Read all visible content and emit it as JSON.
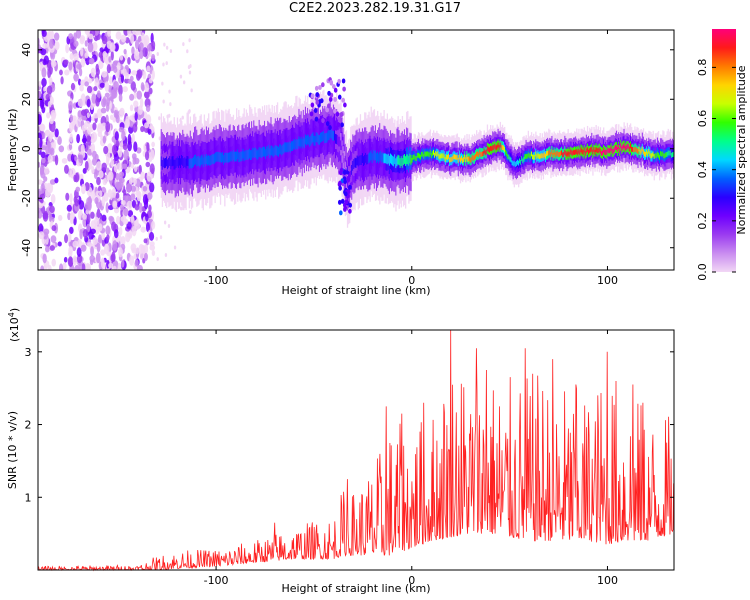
{
  "title": "C2E2.2023.282.19.31.G17",
  "colors": {
    "line": "#ff2020",
    "background": "#ffffff",
    "colormap": [
      "#f2d7f5",
      "#c98cf0",
      "#9b3cf0",
      "#6e00ff",
      "#2a00ff",
      "#0060ff",
      "#00d8ff",
      "#00ff8a",
      "#30ff00",
      "#c8ff00",
      "#ffd400",
      "#ff7a00",
      "#ff1a1a",
      "#ff007a"
    ]
  },
  "chart_data": [
    {
      "type": "heatmap",
      "xlabel": "Height of straight line (km)",
      "ylabel": "Frequency (Hz)",
      "xlim": [
        -191,
        134
      ],
      "ylim": [
        -49,
        48
      ],
      "x_ticks": [
        -100,
        0,
        100
      ],
      "x_tick_labels": [
        "-100",
        "0",
        "100"
      ],
      "y_ticks": [
        -40,
        -20,
        0,
        20,
        40
      ],
      "y_tick_labels": [
        "-40",
        "-20",
        "0",
        "20",
        "40"
      ],
      "colorbar": {
        "label": "Normalized spectral amplitude",
        "range": [
          0,
          0.95
        ],
        "ticks": [
          0.0,
          0.2,
          0.4,
          0.6,
          0.8
        ],
        "tick_labels": [
          "0.0",
          "0.2",
          "0.4",
          "0.6",
          "0.8"
        ]
      },
      "ridge": {
        "x": [
          -128,
          -110,
          -90,
          -70,
          -60,
          -50,
          -40,
          -36,
          -33,
          -30,
          -20,
          -10,
          -5,
          0,
          10,
          20,
          30,
          40,
          45,
          48,
          52,
          60,
          70,
          80,
          90,
          100,
          105,
          110,
          118,
          125,
          134
        ],
        "y": [
          -6,
          -5,
          -3,
          -1,
          2,
          4,
          6,
          2,
          -14,
          -6,
          -3,
          -5,
          -5,
          -4,
          -2,
          -4,
          -4,
          0,
          1,
          -1,
          -6,
          -3,
          -2,
          -2,
          -1,
          -1,
          0,
          1,
          -1,
          -3,
          -2
        ],
        "amplitude": [
          0.3,
          0.35,
          0.35,
          0.35,
          0.4,
          0.4,
          0.35,
          0.2,
          0.2,
          0.3,
          0.35,
          0.45,
          0.5,
          0.55,
          0.6,
          0.7,
          0.75,
          0.85,
          0.85,
          0.6,
          0.4,
          0.6,
          0.75,
          0.85,
          0.85,
          0.9,
          0.9,
          0.9,
          0.7,
          0.6,
          0.5
        ]
      },
      "noise_band": {
        "x_range": [
          -191,
          -132
        ],
        "y_range": [
          -49,
          48
        ],
        "amplitude": [
          0.05,
          0.25
        ]
      }
    },
    {
      "type": "line",
      "xlabel": "Height of straight line (km)",
      "ylabel": "SNR (10 * v/v)",
      "y_multiplier": "(x10^4)",
      "xlim": [
        -191,
        134
      ],
      "ylim": [
        0,
        3.3
      ],
      "x_ticks": [
        -100,
        0,
        100
      ],
      "x_tick_labels": [
        "-100",
        "0",
        "100"
      ],
      "y_ticks": [
        1,
        2,
        3
      ],
      "y_tick_labels": [
        "1",
        "2",
        "3"
      ],
      "envelope": {
        "x": [
          -191,
          -140,
          -130,
          -120,
          -100,
          -80,
          -60,
          -50,
          -40,
          -35,
          -30,
          -20,
          -10,
          -5,
          0,
          10,
          20,
          30,
          40,
          50,
          60,
          70,
          80,
          90,
          100,
          110,
          120,
          134
        ],
        "peak": [
          0.06,
          0.08,
          0.22,
          0.3,
          0.32,
          0.45,
          0.65,
          0.75,
          0.85,
          1.25,
          1.2,
          1.6,
          2.25,
          2.2,
          2.3,
          2.35,
          3.3,
          3.1,
          3.0,
          2.9,
          3.0,
          3.0,
          2.8,
          2.7,
          3.05,
          2.9,
          2.4,
          2.3
        ],
        "floor": [
          0.0,
          0.0,
          0.0,
          0.02,
          0.05,
          0.1,
          0.15,
          0.15,
          0.15,
          0.2,
          0.2,
          0.2,
          0.2,
          0.25,
          0.3,
          0.4,
          0.45,
          0.5,
          0.5,
          0.45,
          0.4,
          0.4,
          0.4,
          0.4,
          0.35,
          0.4,
          0.4,
          0.5
        ]
      },
      "notable_peaks": [
        {
          "x": 20,
          "y": 3.3
        },
        {
          "x": 33,
          "y": 3.05
        },
        {
          "x": 58,
          "y": 3.05
        },
        {
          "x": 38,
          "y": 2.75
        },
        {
          "x": 72,
          "y": 2.9
        },
        {
          "x": 100,
          "y": 3.0
        },
        {
          "x": 84,
          "y": 2.55
        },
        {
          "x": 113,
          "y": 2.55
        },
        {
          "x": 118,
          "y": 2.3
        },
        {
          "x": -13,
          "y": 2.25
        },
        {
          "x": -5,
          "y": 2.15
        },
        {
          "x": 6,
          "y": 2.3
        },
        {
          "x": -33,
          "y": 1.25
        },
        {
          "x": -70,
          "y": 0.65
        }
      ]
    }
  ]
}
